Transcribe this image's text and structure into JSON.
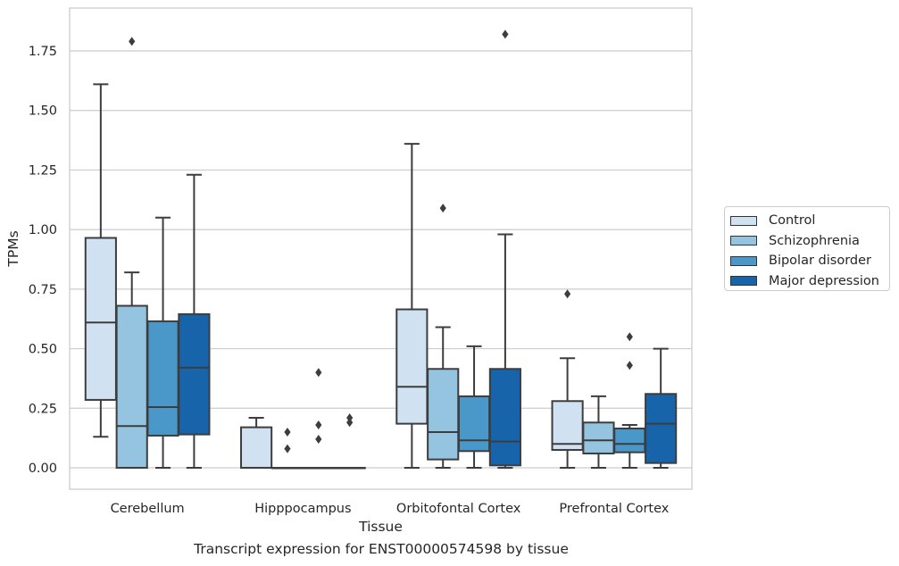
{
  "caption": "Transcript expression for ENST00000574598 by tissue",
  "chart_data": {
    "type": "box",
    "xlabel": "Tissue",
    "ylabel": "TPMs",
    "ylim": [
      -0.09,
      1.93
    ],
    "yticks": [
      "0.00",
      "0.25",
      "0.50",
      "0.75",
      "1.00",
      "1.25",
      "1.50",
      "1.75"
    ],
    "grid": "horizontal",
    "legend_position": "right",
    "categories": [
      "Cerebellum",
      "Hipppocampus",
      "Orbitofontal Cortex",
      "Prefrontal Cortex"
    ],
    "series": [
      {
        "name": "Control",
        "color": "#d0e1f2",
        "boxes": [
          {
            "whislo": 0.13,
            "q1": 0.285,
            "med": 0.61,
            "q3": 0.965,
            "whishi": 1.61,
            "fliers": []
          },
          {
            "whislo": 0.0,
            "q1": 0.0,
            "med": 0.0,
            "q3": 0.17,
            "whishi": 0.21,
            "fliers": []
          },
          {
            "whislo": 0.0,
            "q1": 0.185,
            "med": 0.34,
            "q3": 0.665,
            "whishi": 1.36,
            "fliers": []
          },
          {
            "whislo": 0.0,
            "q1": 0.075,
            "med": 0.1,
            "q3": 0.28,
            "whishi": 0.46,
            "fliers": [
              0.73
            ]
          }
        ]
      },
      {
        "name": "Schizophrenia",
        "color": "#94c4df",
        "boxes": [
          {
            "whislo": 0.0,
            "q1": 0.0,
            "med": 0.175,
            "q3": 0.68,
            "whishi": 0.82,
            "fliers": [
              1.79
            ]
          },
          {
            "whislo": 0.0,
            "q1": 0.0,
            "med": 0.0,
            "q3": 0.0,
            "whishi": 0.0,
            "fliers": [
              0.08,
              0.15
            ]
          },
          {
            "whislo": 0.0,
            "q1": 0.035,
            "med": 0.15,
            "q3": 0.415,
            "whishi": 0.59,
            "fliers": [
              1.09
            ]
          },
          {
            "whislo": 0.0,
            "q1": 0.06,
            "med": 0.115,
            "q3": 0.19,
            "whishi": 0.3,
            "fliers": []
          }
        ]
      },
      {
        "name": "Bipolar disorder",
        "color": "#4a98c9",
        "boxes": [
          {
            "whislo": 0.0,
            "q1": 0.135,
            "med": 0.255,
            "q3": 0.615,
            "whishi": 1.05,
            "fliers": []
          },
          {
            "whislo": 0.0,
            "q1": 0.0,
            "med": 0.0,
            "q3": 0.0,
            "whishi": 0.0,
            "fliers": [
              0.12,
              0.18,
              0.4
            ]
          },
          {
            "whislo": 0.0,
            "q1": 0.07,
            "med": 0.115,
            "q3": 0.3,
            "whishi": 0.51,
            "fliers": []
          },
          {
            "whislo": 0.0,
            "q1": 0.065,
            "med": 0.1,
            "q3": 0.165,
            "whishi": 0.18,
            "fliers": [
              0.43,
              0.55
            ]
          }
        ]
      },
      {
        "name": "Major depression",
        "color": "#1764ab",
        "boxes": [
          {
            "whislo": 0.0,
            "q1": 0.14,
            "med": 0.42,
            "q3": 0.645,
            "whishi": 1.23,
            "fliers": []
          },
          {
            "whislo": 0.0,
            "q1": 0.0,
            "med": 0.0,
            "q3": 0.0,
            "whishi": 0.0,
            "fliers": [
              0.19,
              0.21
            ]
          },
          {
            "whislo": 0.0,
            "q1": 0.01,
            "med": 0.11,
            "q3": 0.415,
            "whishi": 0.98,
            "fliers": [
              1.82
            ]
          },
          {
            "whislo": 0.0,
            "q1": 0.02,
            "med": 0.185,
            "q3": 0.31,
            "whishi": 0.5,
            "fliers": []
          }
        ]
      }
    ]
  }
}
